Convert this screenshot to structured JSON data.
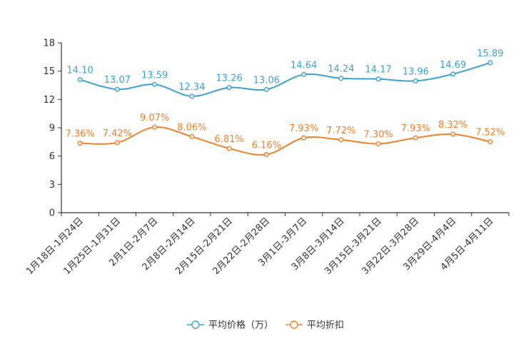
{
  "chart_data": {
    "type": "line",
    "title": "",
    "xlabel": "",
    "ylabel": "",
    "ylim": [
      0,
      18
    ],
    "yticks": [
      0,
      3,
      6,
      9,
      12,
      15,
      18
    ],
    "grid": false,
    "legend_position": "bottom-center",
    "categories": [
      "1月18日-1月24日",
      "1月25日-1月31日",
      "2月1日-2月7日",
      "2月8日-2月14日",
      "2月15日-2月21日",
      "2月22日-2月28日",
      "3月1日-3月7日",
      "3月8日-3月14日",
      "3月15日-3月21日",
      "3月22日-3月28日",
      "3月29日-4月4日",
      "4月5日-4月11日"
    ],
    "series": [
      {
        "name": "平均价格（万）",
        "color": "#3ba1cf",
        "values": [
          14.1,
          13.07,
          13.59,
          12.34,
          13.26,
          13.06,
          14.64,
          14.24,
          14.17,
          13.96,
          14.69,
          15.89
        ],
        "labels": [
          "14.10",
          "13.07",
          "13.59",
          "12.34",
          "13.26",
          "13.06",
          "14.64",
          "14.24",
          "14.17",
          "13.96",
          "14.69",
          "15.89"
        ]
      },
      {
        "name": "平均折扣",
        "color": "#f0802a",
        "values": [
          7.36,
          7.42,
          9.07,
          8.06,
          6.81,
          6.16,
          7.93,
          7.72,
          7.3,
          7.93,
          8.32,
          7.52
        ],
        "labels": [
          "7.36%",
          "7.42%",
          "9.07%",
          "8.06%",
          "6.81%",
          "6.16%",
          "7.93%",
          "7.72%",
          "7.30%",
          "7.93%",
          "8.32%",
          "7.52%"
        ]
      }
    ]
  }
}
